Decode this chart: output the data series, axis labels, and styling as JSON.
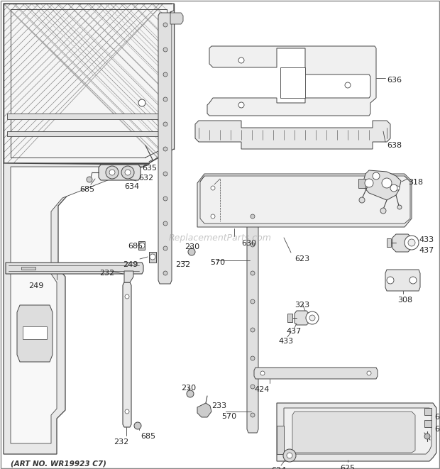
{
  "bg_color": "#ffffff",
  "line_color": "#444444",
  "label_color": "#222222",
  "art_no": "(ART NO. WR19923 C7)",
  "watermark": "ReplacementParts.com",
  "fig_w": 6.2,
  "fig_h": 6.61,
  "dpi": 100
}
